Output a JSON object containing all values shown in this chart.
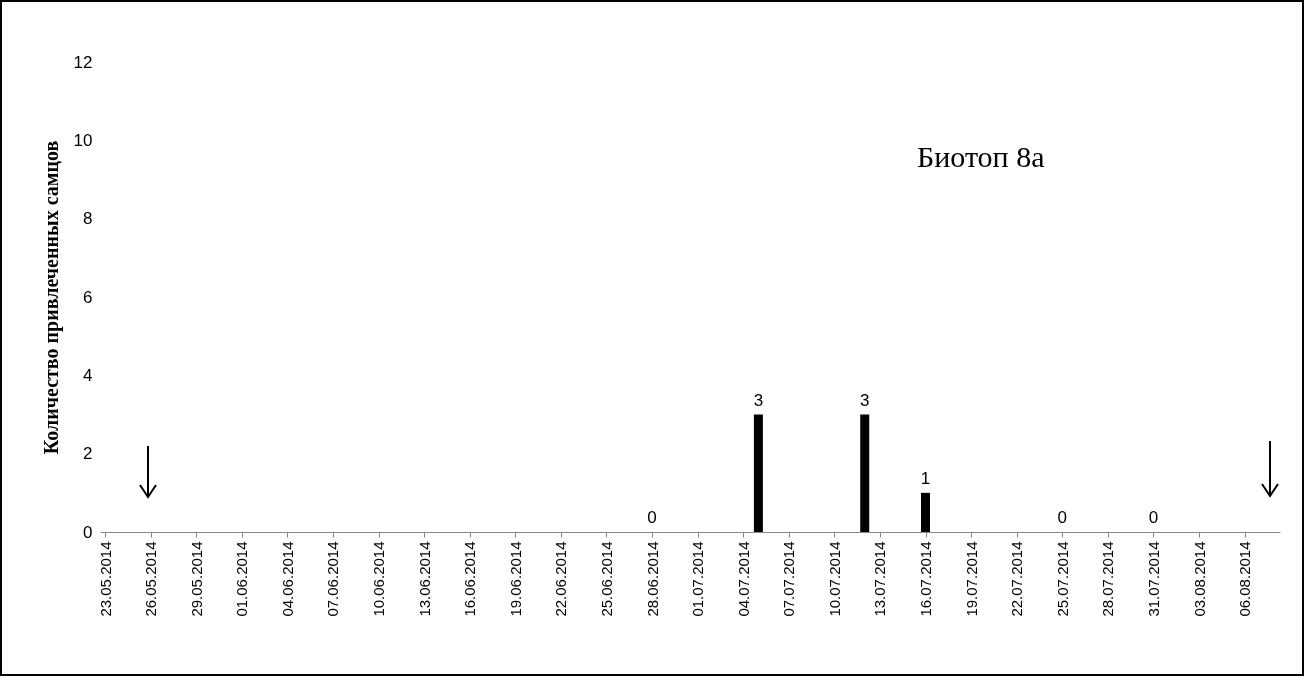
{
  "chart_data": {
    "type": "bar",
    "ylabel": "Количество привлеченных самцов",
    "annotations": [
      "Биотоп 8а"
    ],
    "x": [
      "2014-06-28",
      "2014-07-05",
      "2014-07-12",
      "2014-07-16",
      "2014-07-25",
      "2014-07-31"
    ],
    "values": [
      0,
      3,
      3,
      1,
      0,
      0
    ],
    "color": "#000000",
    "data_labels": true,
    "ylim": [
      0,
      12
    ],
    "yticks": [
      0,
      2,
      4,
      6,
      8,
      10,
      12
    ],
    "xlim": [
      "2014-05-23",
      "2014-08-08"
    ],
    "xticks": [
      {
        "value": "2014-05-23",
        "label": "23.05.2014"
      },
      {
        "value": "2014-05-26",
        "label": "26.05.2014"
      },
      {
        "value": "2014-05-29",
        "label": "29.05.2014"
      },
      {
        "value": "2014-06-01",
        "label": "01.06.2014"
      },
      {
        "value": "2014-06-04",
        "label": "04.06.2014"
      },
      {
        "value": "2014-06-07",
        "label": "07.06.2014"
      },
      {
        "value": "2014-06-10",
        "label": "10.06.2014"
      },
      {
        "value": "2014-06-13",
        "label": "13.06.2014"
      },
      {
        "value": "2014-06-16",
        "label": "16.06.2014"
      },
      {
        "value": "2014-06-19",
        "label": "19.06.2014"
      },
      {
        "value": "2014-06-22",
        "label": "22.06.2014"
      },
      {
        "value": "2014-06-25",
        "label": "25.06.2014"
      },
      {
        "value": "2014-06-28",
        "label": "28.06.2014"
      },
      {
        "value": "2014-07-01",
        "label": "01.07.2014"
      },
      {
        "value": "2014-07-04",
        "label": "04.07.2014"
      },
      {
        "value": "2014-07-07",
        "label": "07.07.2014"
      },
      {
        "value": "2014-07-10",
        "label": "10.07.2014"
      },
      {
        "value": "2014-07-13",
        "label": "13.07.2014"
      },
      {
        "value": "2014-07-16",
        "label": "16.07.2014"
      },
      {
        "value": "2014-07-19",
        "label": "19.07.2014"
      },
      {
        "value": "2014-07-22",
        "label": "22.07.2014"
      },
      {
        "value": "2014-07-25",
        "label": "25.07.2014"
      },
      {
        "value": "2014-07-28",
        "label": "28.07.2014"
      },
      {
        "value": "2014-07-31",
        "label": "31.07.2014"
      },
      {
        "value": "2014-08-03",
        "label": "03.08.2014"
      },
      {
        "value": "2014-08-06",
        "label": "06.08.2014"
      }
    ]
  }
}
